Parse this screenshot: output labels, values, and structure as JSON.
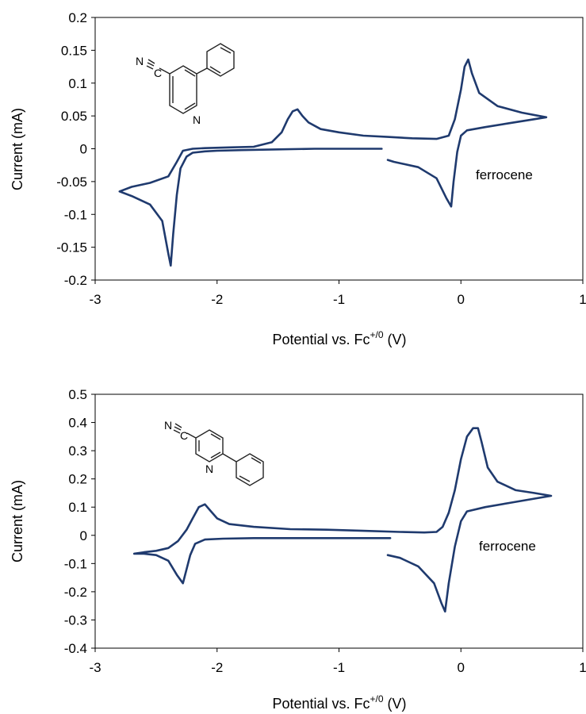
{
  "chart_data": [
    {
      "type": "line",
      "xlabel": "Potential vs. Fc",
      "xlabel_sup": "+/0",
      "xlabel_unit": " (V)",
      "ylabel": "Current (mA)",
      "xlim": [
        -3,
        1
      ],
      "ylim": [
        -0.2,
        0.2
      ],
      "x_ticks": [
        "-3",
        "-2",
        "-1",
        "0",
        "1"
      ],
      "y_ticks": [
        "-0.2",
        "-0.15",
        "-0.1",
        "-0.05",
        "0",
        "0.05",
        "0.1",
        "0.15",
        "0.2"
      ],
      "grid": false,
      "line_color": "#1f3a6e",
      "annotation": "ferrocene",
      "molecule_labels": [
        "N",
        "C",
        "N"
      ],
      "series": [
        {
          "x": [
            -0.65,
            -0.9,
            -1.2,
            -1.5,
            -1.8,
            -2.0,
            -2.1,
            -2.2,
            -2.25,
            -2.3,
            -2.33,
            -2.36,
            -2.38,
            -2.4,
            -2.45,
            -2.55,
            -2.7,
            -2.8,
            -2.7,
            -2.55,
            -2.4,
            -2.33,
            -2.28,
            -2.2,
            -2.1,
            -1.9,
            -1.7,
            -1.55,
            -1.47,
            -1.42,
            -1.38,
            -1.34,
            -1.3,
            -1.25,
            -1.15,
            -1.0,
            -0.8,
            -0.6,
            -0.4,
            -0.2,
            -0.1,
            -0.05,
            0.0,
            0.03,
            0.06,
            0.09,
            0.15,
            0.3,
            0.5,
            0.7,
            0.6,
            0.4,
            0.2,
            0.05,
            0.0,
            -0.03,
            -0.06,
            -0.08,
            -0.12,
            -0.2,
            -0.35,
            -0.55,
            -0.6
          ],
          "y": [
            0.0,
            0.0,
            0.0,
            -0.001,
            -0.002,
            -0.003,
            -0.004,
            -0.006,
            -0.012,
            -0.03,
            -0.07,
            -0.13,
            -0.178,
            -0.16,
            -0.11,
            -0.085,
            -0.072,
            -0.065,
            -0.058,
            -0.052,
            -0.042,
            -0.02,
            -0.003,
            0.0,
            0.001,
            0.002,
            0.003,
            0.01,
            0.025,
            0.045,
            0.057,
            0.06,
            0.05,
            0.04,
            0.03,
            0.025,
            0.02,
            0.018,
            0.016,
            0.015,
            0.02,
            0.045,
            0.09,
            0.125,
            0.136,
            0.115,
            0.085,
            0.065,
            0.055,
            0.048,
            0.045,
            0.039,
            0.033,
            0.028,
            0.02,
            -0.005,
            -0.05,
            -0.088,
            -0.075,
            -0.045,
            -0.028,
            -0.02,
            -0.017
          ]
        }
      ]
    },
    {
      "type": "line",
      "xlabel": "Potential vs. Fc",
      "xlabel_sup": "+/0",
      "xlabel_unit": " (V)",
      "ylabel": "Current (mA)",
      "xlim": [
        -3,
        1
      ],
      "ylim": [
        -0.4,
        0.5
      ],
      "x_ticks": [
        "-3",
        "-2",
        "-1",
        "0",
        "1"
      ],
      "y_ticks": [
        "-0.4",
        "-0.3",
        "-0.2",
        "-0.1",
        "0",
        "0.1",
        "0.2",
        "0.3",
        "0.4",
        "0.5"
      ],
      "grid": false,
      "line_color": "#1f3a6e",
      "annotation": "ferrocene",
      "molecule_labels": [
        "N",
        "C",
        "N"
      ],
      "series": [
        {
          "x": [
            -0.58,
            -0.9,
            -1.3,
            -1.7,
            -1.95,
            -2.1,
            -2.18,
            -2.22,
            -2.25,
            -2.28,
            -2.33,
            -2.4,
            -2.5,
            -2.6,
            -2.68,
            -2.6,
            -2.5,
            -2.4,
            -2.32,
            -2.25,
            -2.2,
            -2.15,
            -2.1,
            -2.05,
            -2.0,
            -1.9,
            -1.7,
            -1.4,
            -1.1,
            -0.8,
            -0.5,
            -0.3,
            -0.2,
            -0.15,
            -0.1,
            -0.05,
            0.0,
            0.05,
            0.1,
            0.14,
            0.17,
            0.22,
            0.3,
            0.45,
            0.6,
            0.74,
            0.6,
            0.4,
            0.2,
            0.05,
            0.0,
            -0.05,
            -0.1,
            -0.13,
            -0.16,
            -0.22,
            -0.35,
            -0.5,
            -0.6
          ],
          "y": [
            -0.01,
            -0.01,
            -0.01,
            -0.01,
            -0.012,
            -0.015,
            -0.03,
            -0.07,
            -0.12,
            -0.17,
            -0.14,
            -0.09,
            -0.07,
            -0.065,
            -0.065,
            -0.06,
            -0.055,
            -0.045,
            -0.02,
            0.02,
            0.06,
            0.1,
            0.11,
            0.085,
            0.06,
            0.04,
            0.03,
            0.022,
            0.02,
            0.016,
            0.012,
            0.01,
            0.012,
            0.03,
            0.08,
            0.16,
            0.27,
            0.35,
            0.38,
            0.38,
            0.33,
            0.24,
            0.19,
            0.16,
            0.15,
            0.14,
            0.13,
            0.115,
            0.1,
            0.085,
            0.05,
            -0.04,
            -0.17,
            -0.27,
            -0.24,
            -0.17,
            -0.11,
            -0.08,
            -0.07
          ]
        }
      ]
    }
  ]
}
